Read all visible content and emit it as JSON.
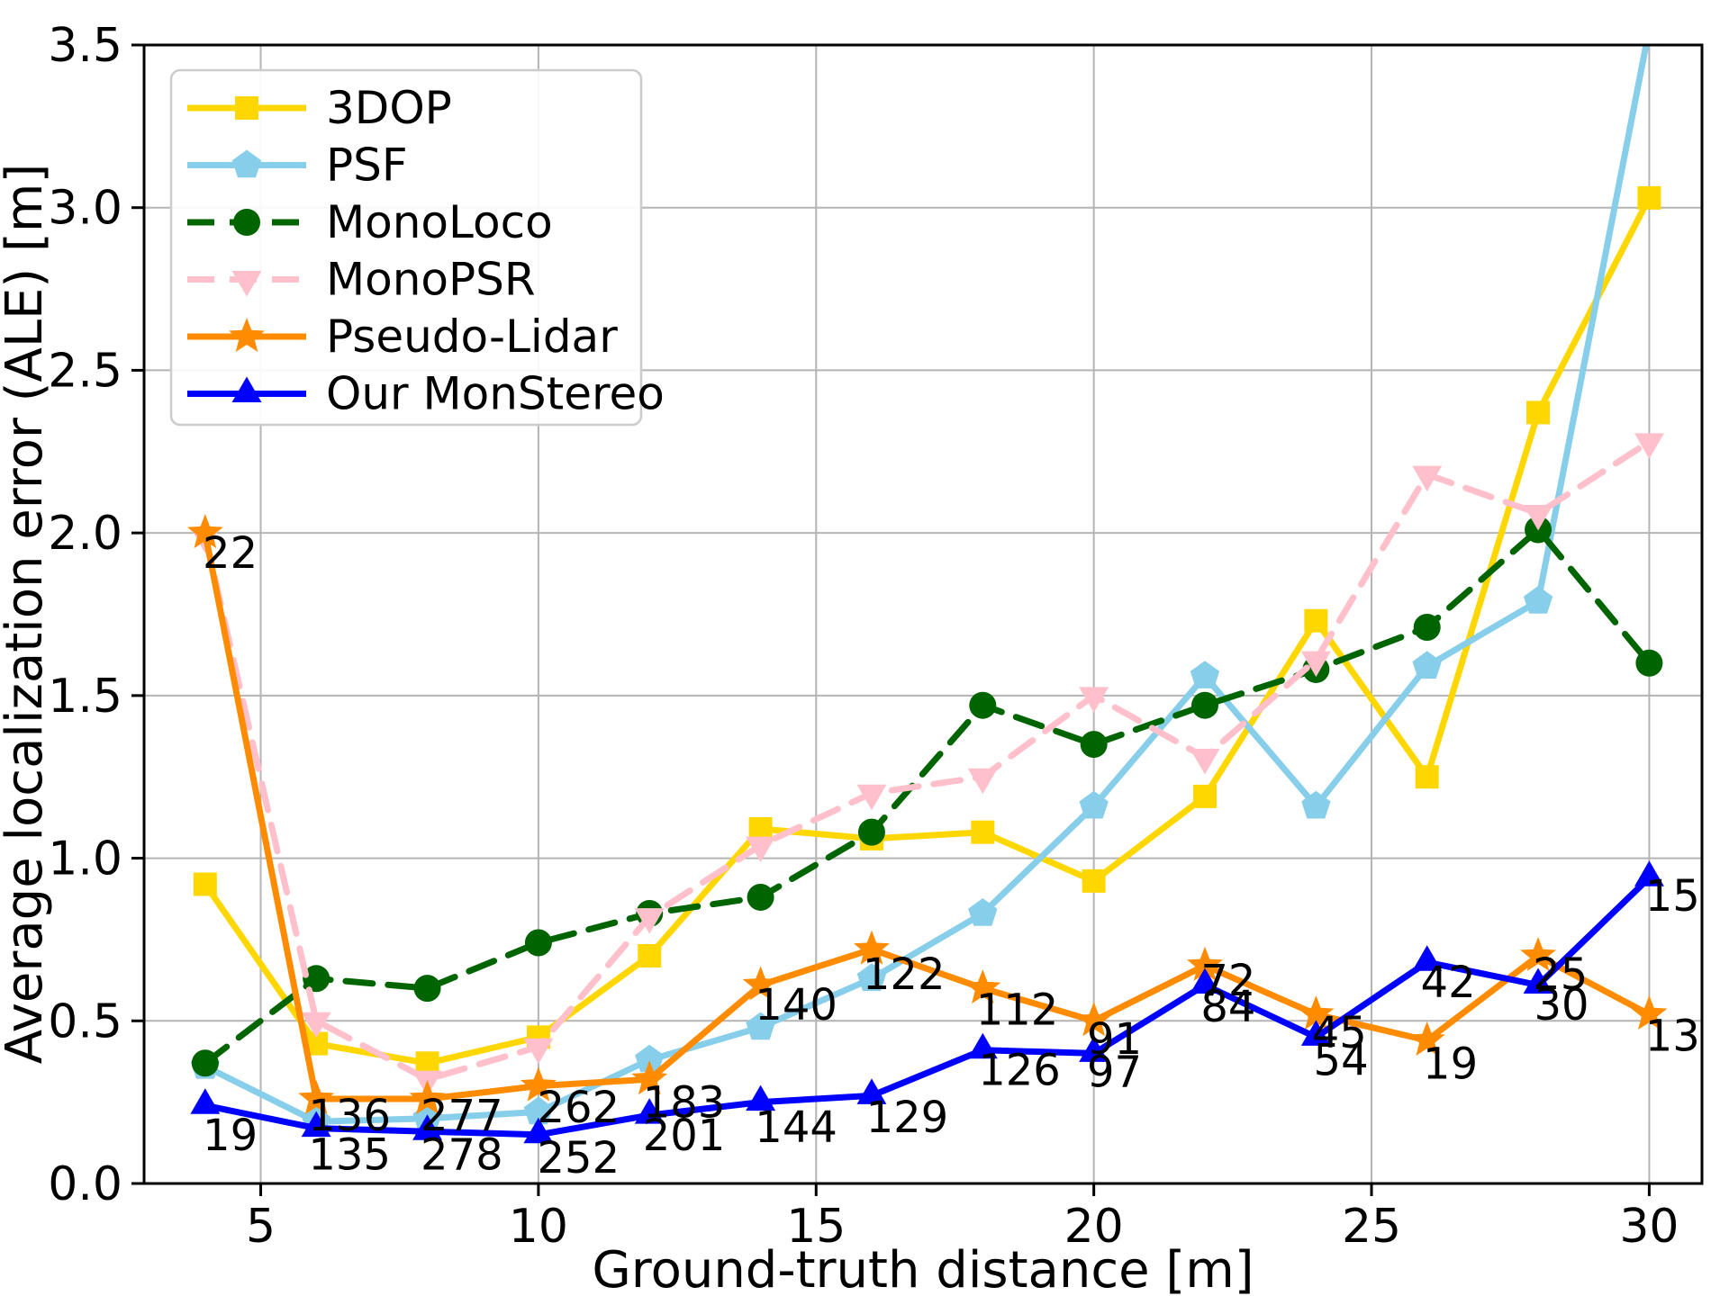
{
  "chart_data": {
    "type": "line",
    "title": "",
    "xlabel": "Ground-truth distance [m]",
    "ylabel": "Average localization error (ALE) [m]",
    "xlim": [
      2.9,
      30.95
    ],
    "ylim": [
      0,
      3.5
    ],
    "xticks": [
      5,
      10,
      15,
      20,
      25,
      30
    ],
    "ytick_labels": [
      "0.0",
      "0.5",
      "1.0",
      "1.5",
      "2.0",
      "2.5",
      "3.0",
      "3.5"
    ],
    "grid": true,
    "grid_color": "#b4b4b4",
    "legend_position": "upper-left",
    "x": [
      4,
      6,
      8,
      10,
      12,
      14,
      16,
      18,
      20,
      22,
      24,
      26,
      28,
      30
    ],
    "series": [
      {
        "name": "3DOP",
        "color": "#FFD700",
        "linestyle": "solid",
        "marker": "square",
        "values": [
          0.92,
          0.43,
          0.37,
          0.45,
          0.7,
          1.09,
          1.06,
          1.08,
          0.93,
          1.19,
          1.73,
          1.25,
          2.37,
          3.03
        ]
      },
      {
        "name": "PSF",
        "color": "#87CEEB",
        "linestyle": "solid",
        "marker": "pentagon",
        "values": [
          0.36,
          0.19,
          0.2,
          0.22,
          0.38,
          0.48,
          0.63,
          0.83,
          1.16,
          1.56,
          1.16,
          1.59,
          1.79,
          3.55
        ]
      },
      {
        "name": "MonoLoco",
        "color": "#006400",
        "linestyle": "dashed",
        "marker": "circle",
        "values": [
          0.37,
          0.63,
          0.6,
          0.74,
          0.83,
          0.88,
          1.08,
          1.47,
          1.35,
          1.47,
          1.58,
          1.71,
          2.01,
          1.6
        ]
      },
      {
        "name": "MonoPSR",
        "color": "#FFC0CB",
        "linestyle": "dashed",
        "marker": "triangle-down",
        "values": [
          1.99,
          0.5,
          0.32,
          0.42,
          0.82,
          1.04,
          1.2,
          1.25,
          1.5,
          1.31,
          1.61,
          2.18,
          2.06,
          2.28
        ]
      },
      {
        "name": "Pseudo-Lidar",
        "color": "#FF8C00",
        "linestyle": "solid",
        "marker": "star",
        "values": [
          2.0,
          0.26,
          0.26,
          0.3,
          0.32,
          0.61,
          0.72,
          0.6,
          0.5,
          0.67,
          0.52,
          0.44,
          0.7,
          0.52
        ]
      },
      {
        "name": "Our MonStereo",
        "color": "#0000FF",
        "linestyle": "solid",
        "marker": "triangle-up",
        "values": [
          0.24,
          0.17,
          0.16,
          0.15,
          0.21,
          0.25,
          0.27,
          0.41,
          0.4,
          0.61,
          0.45,
          0.68,
          0.61,
          0.94
        ]
      }
    ],
    "annotations": [
      {
        "text": "22",
        "x": 4.45,
        "y": 1.94
      },
      {
        "text": "19",
        "x": 4.45,
        "y": 0.15
      },
      {
        "text": "136",
        "x": 6.6,
        "y": 0.21
      },
      {
        "text": "135",
        "x": 6.6,
        "y": 0.09
      },
      {
        "text": "277",
        "x": 8.62,
        "y": 0.21
      },
      {
        "text": "278",
        "x": 8.62,
        "y": 0.09
      },
      {
        "text": "262",
        "x": 10.72,
        "y": 0.235
      },
      {
        "text": "252",
        "x": 10.72,
        "y": 0.08
      },
      {
        "text": "183",
        "x": 12.62,
        "y": 0.25
      },
      {
        "text": "201",
        "x": 12.62,
        "y": 0.15
      },
      {
        "text": "140",
        "x": 14.64,
        "y": 0.55
      },
      {
        "text": "144",
        "x": 14.64,
        "y": 0.175
      },
      {
        "text": "122",
        "x": 16.58,
        "y": 0.645
      },
      {
        "text": "129",
        "x": 16.64,
        "y": 0.205
      },
      {
        "text": "112",
        "x": 18.62,
        "y": 0.535
      },
      {
        "text": "126",
        "x": 18.66,
        "y": 0.35
      },
      {
        "text": "91",
        "x": 20.37,
        "y": 0.445
      },
      {
        "text": "97",
        "x": 20.37,
        "y": 0.345
      },
      {
        "text": "72",
        "x": 22.42,
        "y": 0.625
      },
      {
        "text": "84",
        "x": 22.42,
        "y": 0.545
      },
      {
        "text": "45",
        "x": 24.42,
        "y": 0.465
      },
      {
        "text": "54",
        "x": 24.45,
        "y": 0.38
      },
      {
        "text": "42",
        "x": 26.38,
        "y": 0.62
      },
      {
        "text": "19",
        "x": 26.42,
        "y": 0.37
      },
      {
        "text": "25",
        "x": 28.4,
        "y": 0.645
      },
      {
        "text": "30",
        "x": 28.42,
        "y": 0.55
      },
      {
        "text": "15",
        "x": 30.42,
        "y": 0.885
      },
      {
        "text": "13",
        "x": 30.42,
        "y": 0.455
      }
    ]
  }
}
